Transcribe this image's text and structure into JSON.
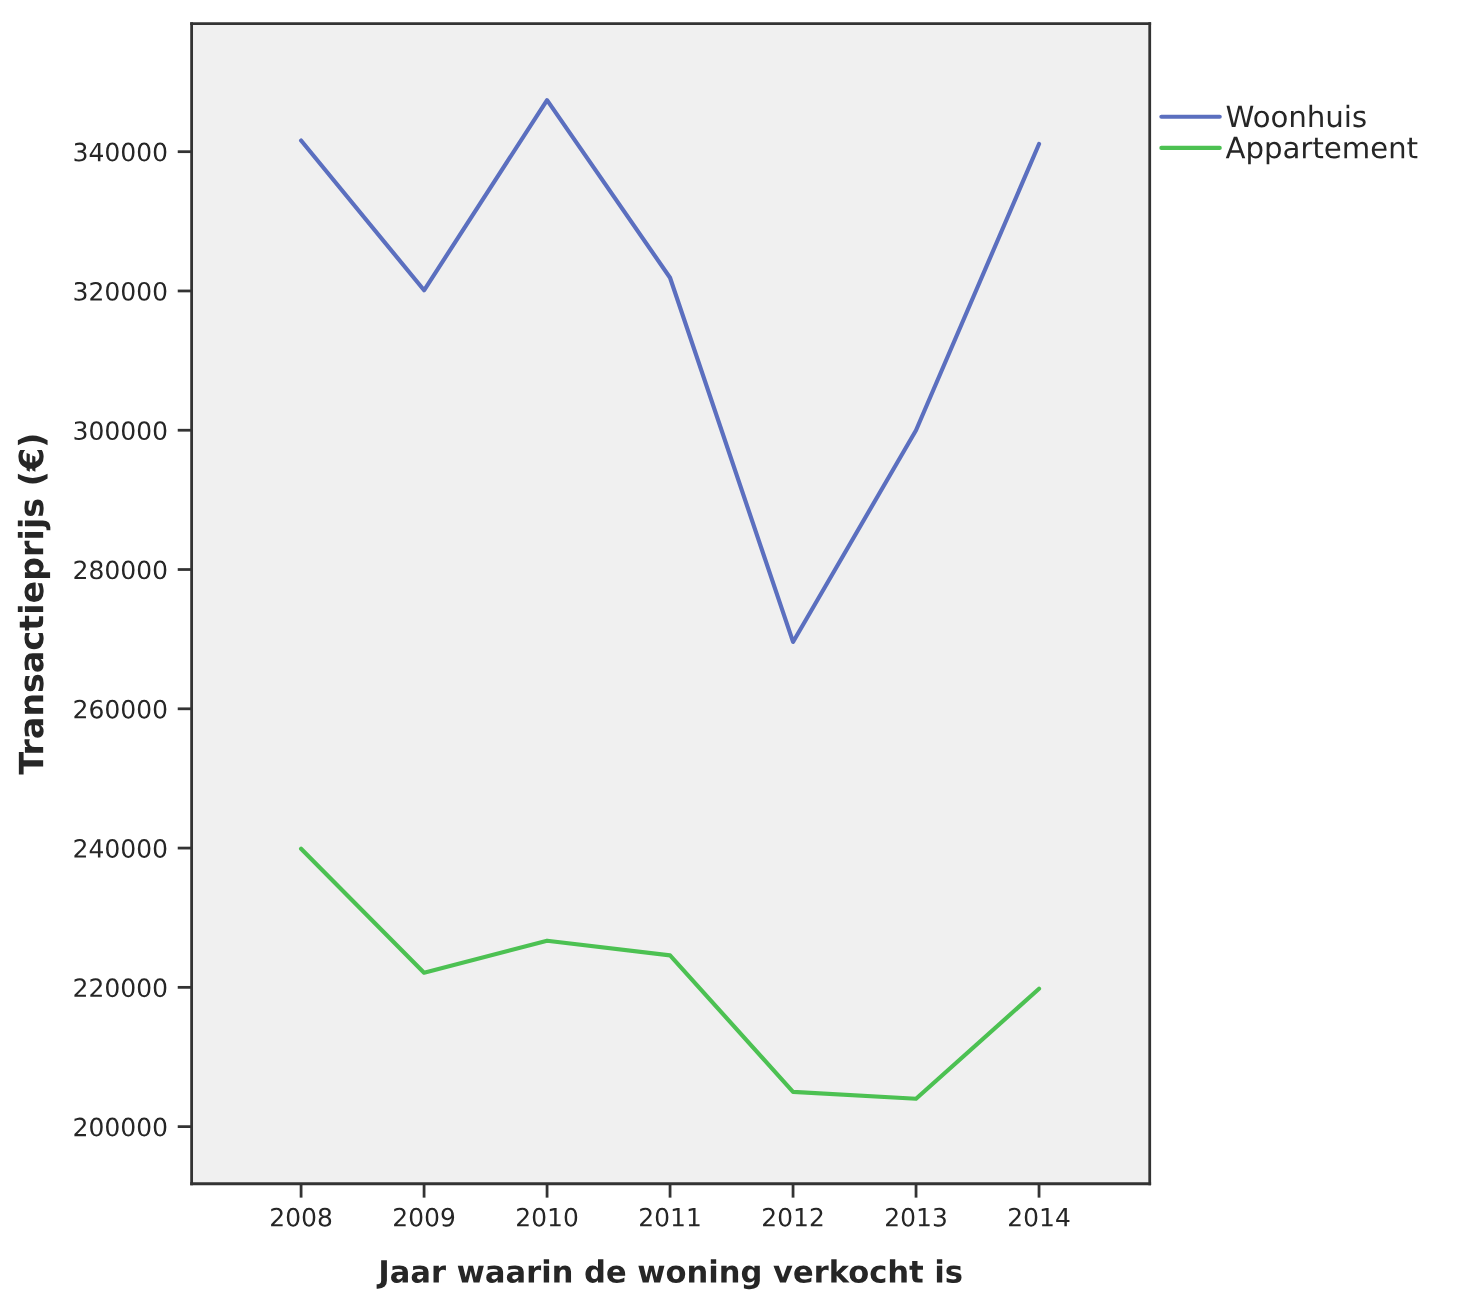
{
  "chart_data": {
    "type": "line",
    "xlabel": "Jaar waarin de woning verkocht is",
    "ylabel": "Transactieprijs (€)",
    "categories": [
      "2008",
      "2009",
      "2010",
      "2011",
      "2012",
      "2013",
      "2014"
    ],
    "series": [
      {
        "name": "Woonhuis",
        "color": "#5b6fbf",
        "values": [
          341600,
          320100,
          347400,
          321900,
          269600,
          300000,
          341100
        ]
      },
      {
        "name": "Appartement",
        "color": "#4cc152",
        "values": [
          239900,
          222100,
          226700,
          224600,
          205000,
          204000,
          219800
        ]
      }
    ],
    "ylim": [
      191800,
      358400
    ],
    "yticks": [
      200000,
      220000,
      240000,
      260000,
      280000,
      300000,
      320000,
      340000
    ],
    "legend": "top right",
    "marker": "none",
    "line_style": "solid"
  }
}
